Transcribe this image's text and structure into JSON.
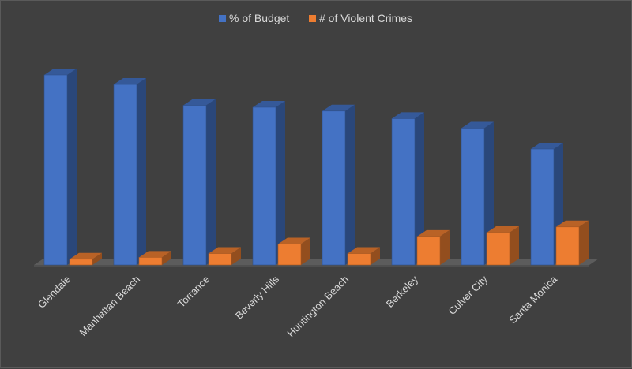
{
  "chart_data": {
    "type": "bar",
    "three_d": true,
    "title": "",
    "xlabel": "",
    "ylabel": "",
    "categories": [
      "Glendale",
      "Manhattan Beach",
      "Torrance",
      "Beverly Hills",
      "Huntington Beach",
      "Berkeley",
      "Culver City",
      "Santa Monica"
    ],
    "series": [
      {
        "name": "% of Budget",
        "color": "#4472c4",
        "values": [
          100,
          95,
          84,
          83,
          81,
          77,
          72,
          61
        ]
      },
      {
        "name": "# of Violent Crimes",
        "color": "#ed7d31",
        "values": [
          3,
          4,
          6,
          11,
          6,
          15,
          17,
          20
        ]
      }
    ],
    "ylim": [
      0,
      100
    ],
    "grid": false,
    "legend_position": "top-center",
    "tick_label_rotation": -45
  }
}
